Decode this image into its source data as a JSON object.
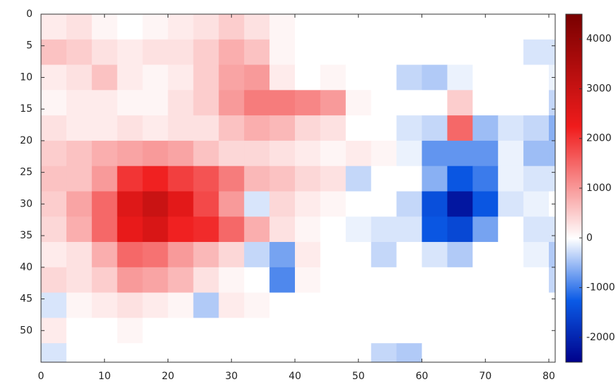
{
  "chart_data": {
    "type": "heatmap",
    "x": [
      2,
      6,
      10,
      14,
      18,
      22,
      26,
      30,
      34,
      38,
      42,
      46,
      50,
      54,
      58,
      62,
      66,
      70,
      74,
      78,
      82
    ],
    "y": [
      2,
      6,
      10,
      14,
      18,
      22,
      26,
      30,
      34,
      38,
      42,
      46,
      50,
      54
    ],
    "values": [
      [
        200,
        300,
        100,
        0,
        100,
        200,
        300,
        500,
        300,
        100,
        0,
        0,
        0,
        0,
        0,
        0,
        0,
        0,
        0,
        0,
        0
      ],
      [
        600,
        500,
        300,
        200,
        300,
        300,
        500,
        800,
        600,
        100,
        0,
        0,
        0,
        0,
        0,
        0,
        0,
        0,
        0,
        -200,
        -200
      ],
      [
        200,
        300,
        600,
        200,
        100,
        200,
        500,
        900,
        1000,
        200,
        0,
        100,
        0,
        0,
        -300,
        -400,
        -100,
        0,
        0,
        0,
        -100
      ],
      [
        100,
        200,
        200,
        100,
        100,
        300,
        500,
        1000,
        1300,
        1300,
        1200,
        1000,
        100,
        0,
        0,
        0,
        500,
        0,
        0,
        0,
        -300
      ],
      [
        300,
        200,
        200,
        300,
        200,
        300,
        300,
        600,
        800,
        700,
        400,
        300,
        0,
        0,
        -200,
        -300,
        1500,
        -500,
        -200,
        -300,
        -600
      ],
      [
        500,
        600,
        800,
        900,
        1000,
        900,
        600,
        400,
        400,
        300,
        200,
        100,
        200,
        100,
        -100,
        -800,
        -800,
        -800,
        -100,
        -500,
        -500
      ],
      [
        600,
        600,
        1000,
        2000,
        2200,
        1900,
        1700,
        1300,
        700,
        600,
        400,
        300,
        -300,
        0,
        0,
        -600,
        -1300,
        -1000,
        -100,
        -200,
        -200
      ],
      [
        500,
        900,
        1500,
        2600,
        3000,
        2500,
        1800,
        1000,
        -200,
        400,
        200,
        100,
        0,
        0,
        -300,
        -1400,
        -2200,
        -1300,
        -200,
        -100,
        0
      ],
      [
        400,
        800,
        1500,
        2400,
        2700,
        2200,
        2100,
        1500,
        800,
        300,
        100,
        0,
        -100,
        -200,
        -200,
        -1300,
        -1500,
        -700,
        0,
        -200,
        -200
      ],
      [
        200,
        300,
        800,
        1500,
        1400,
        1000,
        700,
        400,
        -300,
        -700,
        200,
        0,
        0,
        -300,
        0,
        -200,
        -400,
        0,
        0,
        -100,
        -400
      ],
      [
        400,
        300,
        500,
        1000,
        900,
        700,
        300,
        100,
        0,
        -900,
        100,
        0,
        0,
        0,
        0,
        0,
        0,
        0,
        0,
        0,
        -300
      ],
      [
        -200,
        100,
        200,
        300,
        200,
        100,
        -400,
        200,
        100,
        0,
        0,
        0,
        0,
        0,
        0,
        0,
        0,
        0,
        0,
        0,
        0
      ],
      [
        200,
        0,
        0,
        100,
        0,
        0,
        0,
        0,
        0,
        0,
        0,
        0,
        0,
        0,
        0,
        0,
        0,
        0,
        0,
        0,
        0
      ],
      [
        -200,
        0,
        0,
        0,
        0,
        0,
        0,
        0,
        0,
        0,
        0,
        0,
        0,
        -300,
        -400,
        0,
        0,
        0,
        0,
        0,
        0
      ]
    ],
    "xlim": [
      0,
      81
    ],
    "xticks": [
      0,
      10,
      20,
      30,
      40,
      50,
      60,
      70,
      80
    ],
    "ylim": [
      0,
      55
    ],
    "yticks": [
      0,
      5,
      10,
      15,
      20,
      25,
      30,
      35,
      40,
      45,
      50
    ],
    "y_inverted": true,
    "clim": [
      -2500,
      4500
    ],
    "cticks": [
      -2000,
      -1000,
      0,
      1000,
      2000,
      3000,
      4000
    ],
    "colormap": {
      "negative": [
        "#ffffff",
        "#0a5ae6",
        "#00008a"
      ],
      "positive": [
        "#ffffff",
        "#f01c1c",
        "#7a0000"
      ]
    }
  }
}
